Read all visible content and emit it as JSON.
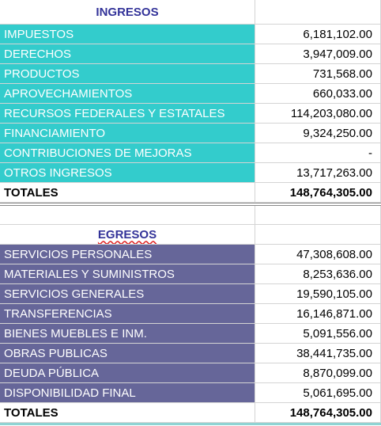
{
  "ingresos": {
    "title": "INGRESOS",
    "rows": [
      [
        "IMPUESTOS",
        "6,181,102.00"
      ],
      [
        "DERECHOS",
        "3,947,009.00"
      ],
      [
        "PRODUCTOS",
        "731,568.00"
      ],
      [
        "APROVECHAMIENTOS",
        "660,033.00"
      ],
      [
        "RECURSOS FEDERALES Y ESTATALES",
        "114,203,080.00"
      ],
      [
        "FINANCIAMIENTO",
        "9,324,250.00"
      ],
      [
        "CONTRIBUCIONES DE MEJORAS",
        "-"
      ],
      [
        "OTROS INGRESOS",
        "13,717,263.00"
      ]
    ],
    "total": [
      "TOTALES",
      "148,764,305.00"
    ]
  },
  "egresos": {
    "title": "EGRESOS",
    "rows": [
      [
        "SERVICIOS PERSONALES",
        "47,308,608.00"
      ],
      [
        "MATERIALES Y SUMINISTROS",
        "8,253,636.00"
      ],
      [
        "SERVICIOS GENERALES",
        "19,590,105.00"
      ],
      [
        "TRANSFERENCIAS",
        "16,146,871.00"
      ],
      [
        "BIENES MUEBLES E INM.",
        "5,091,556.00"
      ],
      [
        "OBRAS PUBLICAS",
        "38,441,735.00"
      ],
      [
        "DEUDA PÚBLICA",
        "8,870,099.00"
      ],
      [
        "DISPONIBILIDAD FINAL",
        "5,061,695.00"
      ]
    ],
    "total": [
      "TOTALES",
      "148,764,305.00"
    ]
  }
}
